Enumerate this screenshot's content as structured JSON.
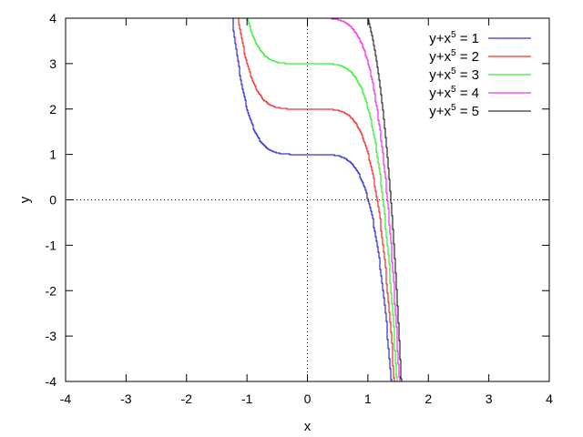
{
  "chart_data": {
    "type": "line",
    "title": "",
    "xlabel": "x",
    "ylabel": "y",
    "xlim": [
      -4,
      4
    ],
    "ylim": [
      -4,
      4
    ],
    "x_ticks": [
      "-4",
      "-3",
      "-2",
      "-1",
      "0",
      "1",
      "2",
      "3",
      "4"
    ],
    "y_ticks": [
      "-4",
      "-3",
      "-2",
      "-1",
      "0",
      "1",
      "2",
      "3",
      "4"
    ],
    "grid": false,
    "zero_axes_dotted": true,
    "legend_position": "top-right",
    "equation": "y = c - x^5",
    "series": [
      {
        "name_prefix": "y+x",
        "name_sup": "5",
        "name_suffix": " = 1",
        "c": 1,
        "color": "#0000cc"
      },
      {
        "name_prefix": "y+x",
        "name_sup": "5",
        "name_suffix": " = 2",
        "c": 2,
        "color": "#ee0000"
      },
      {
        "name_prefix": "y+x",
        "name_sup": "5",
        "name_suffix": " = 3",
        "c": 3,
        "color": "#00ee00"
      },
      {
        "name_prefix": "y+x",
        "name_sup": "5",
        "name_suffix": " = 4",
        "c": 4,
        "color": "#ee00ee"
      },
      {
        "name_prefix": "y+x",
        "name_sup": "5",
        "name_suffix": " = 5",
        "c": 5,
        "color": "#000000"
      }
    ]
  }
}
